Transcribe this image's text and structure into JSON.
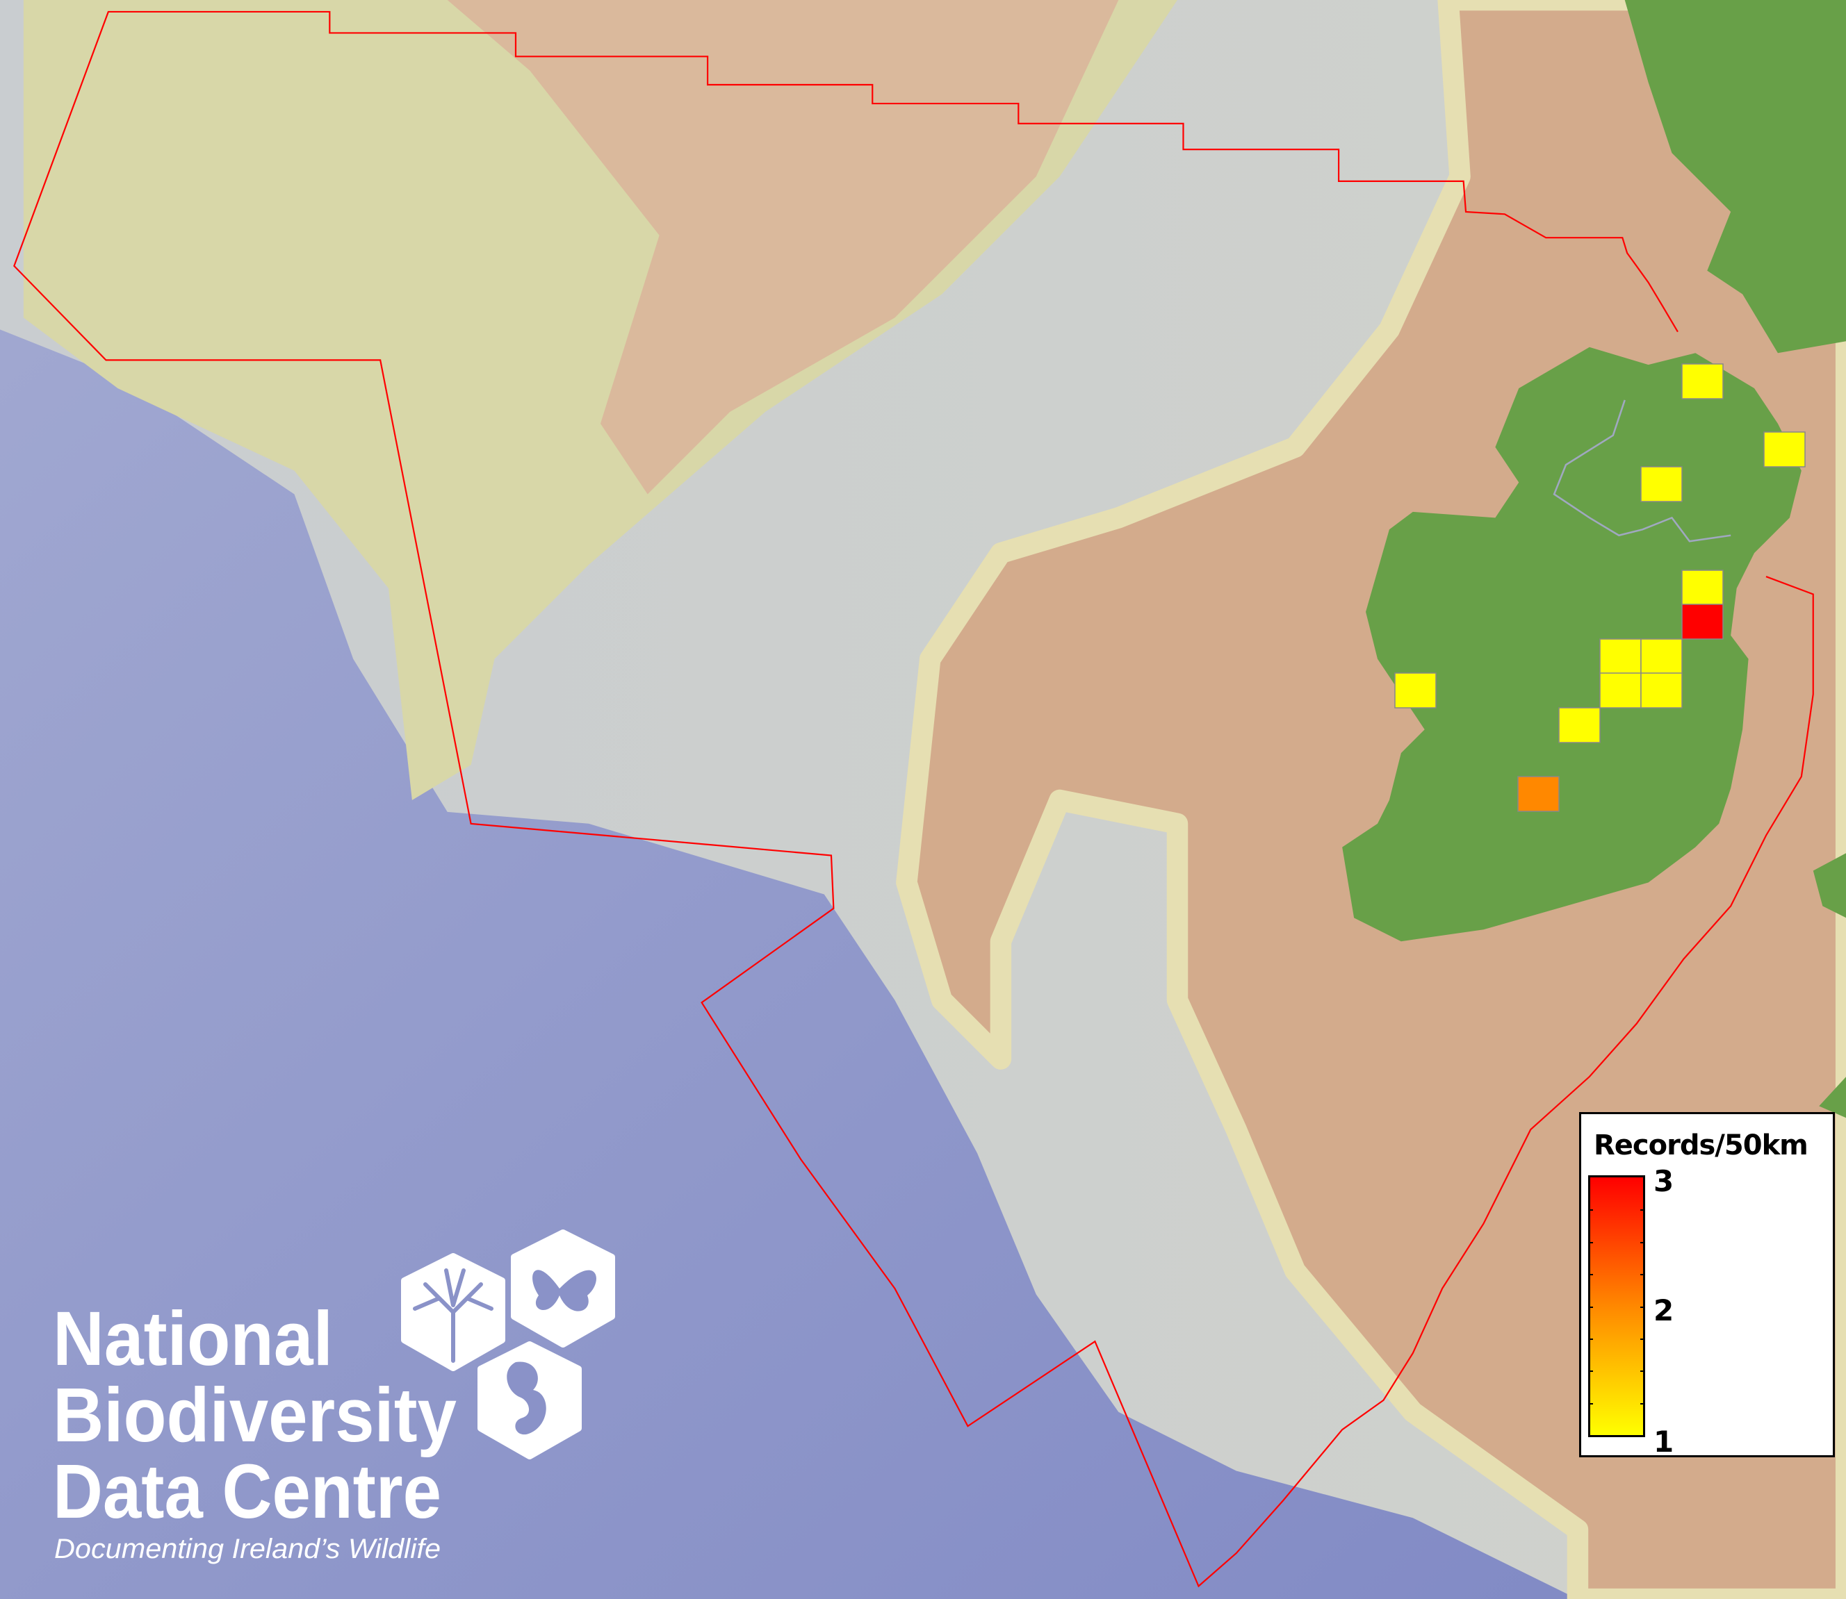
{
  "map": {
    "colors": {
      "ocean_deep": "#8a92c8",
      "slope": "#c4c8d2",
      "shelf_yellow": "#d8d7a8",
      "shelf_tan": "#d3ab8c",
      "land": "#68a048",
      "eez_boundary": "#ff0000",
      "border_line": "#a0a8c0"
    },
    "cells": [
      {
        "records": 1
      },
      {
        "records": 1
      },
      {
        "records": 1
      },
      {
        "records": 1
      },
      {
        "records": 3
      },
      {
        "records": 1
      },
      {
        "records": 1
      },
      {
        "records": 1
      },
      {
        "records": 1
      },
      {
        "records": 1
      },
      {
        "records": 1
      },
      {
        "records": 2
      }
    ]
  },
  "legend": {
    "title": "Records/50km",
    "min": 1,
    "max": 3,
    "labels": [
      "3",
      "2",
      "1"
    ],
    "color_min": "#ffff00",
    "color_mid": "#ff8800",
    "color_max": "#ff0000"
  },
  "logo": {
    "line1": "National",
    "line2": "Biodiversity",
    "line3": "Data Centre",
    "tagline": "Documenting Ireland’s Wildlife",
    "icons": [
      "tree-icon",
      "butterfly-icon",
      "seahorse-icon"
    ]
  }
}
